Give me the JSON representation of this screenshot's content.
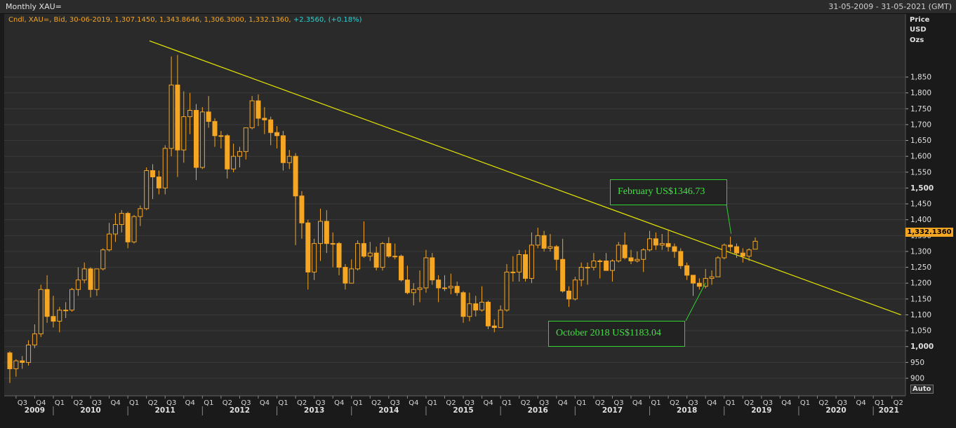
{
  "header": {
    "title": "Monthly XAU=",
    "date_range": "31-05-2009 - 31-05-2021 (GMT)"
  },
  "legend": {
    "text": "Cndl, XAU=, Bid, 30-06-2019, 1,307.1450, 1,343.8646, 1,306.3000, 1,332.1360,",
    "change": "+2.3560, (+0.18%)"
  },
  "y_axis_header": [
    "Price",
    "USD",
    "Ozs"
  ],
  "last_price_tag": "1,332.1360",
  "auto_button": "Auto",
  "annotations": {
    "feb": "February US$1346.73",
    "oct": "October 2018 US$1183.04"
  },
  "colors": {
    "up": "#f5a623",
    "trendline": "#e6e600",
    "annotation": "#2ed12e",
    "change_text": "#2bd4d4"
  },
  "chart_data": {
    "type": "candlestick",
    "title": "Monthly XAU=",
    "ylabel": "Price USD Ozs",
    "ylim": [
      880,
      1920
    ],
    "y_ticks": [
      900,
      950,
      1000,
      1050,
      1100,
      1150,
      1200,
      1250,
      1300,
      1350,
      1400,
      1450,
      1500,
      1550,
      1600,
      1650,
      1700,
      1750,
      1800,
      1850
    ],
    "y_tick_labels": [
      "900",
      "950",
      "1,000",
      "1,050",
      "1,100",
      "1,150",
      "1,200",
      "1,250",
      "1,300",
      "1,350",
      "1,400",
      "1,450",
      "1,500",
      "1,550",
      "1,600",
      "1,650",
      "1,700",
      "1,750",
      "1,800",
      "1,850"
    ],
    "x_range": [
      "2009-06",
      "2021-05"
    ],
    "quarter_labels": [
      "Q3",
      "Q4",
      "Q1",
      "Q2",
      "Q3",
      "Q4",
      "Q1",
      "Q2",
      "Q3",
      "Q4",
      "Q1",
      "Q2",
      "Q3",
      "Q4",
      "Q1",
      "Q2",
      "Q3",
      "Q4",
      "Q1",
      "Q2",
      "Q3",
      "Q4",
      "Q1",
      "Q2",
      "Q3",
      "Q4",
      "Q1",
      "Q2",
      "Q3",
      "Q4",
      "Q1",
      "Q2",
      "Q3",
      "Q4",
      "Q1",
      "Q2",
      "Q3",
      "Q4",
      "Q1",
      "Q2",
      "Q3",
      "Q4",
      "Q1",
      "Q2",
      "Q3",
      "Q4",
      "Q1",
      "Q2"
    ],
    "year_labels": [
      "2009",
      "2010",
      "2011",
      "2012",
      "2013",
      "2014",
      "2015",
      "2016",
      "2017",
      "2018",
      "2019",
      "2020",
      "2021"
    ],
    "trendline": {
      "start": [
        "2011-09",
        1920
      ],
      "end": [
        "2021-05",
        1100
      ]
    },
    "callouts": [
      {
        "label": "February US$1346.73",
        "date": "2019-02",
        "value": 1346.73
      },
      {
        "label": "October 2018 US$1183.04",
        "date": "2018-10",
        "value": 1183.04
      }
    ],
    "candles": [
      [
        "2009-06",
        980,
        985,
        885,
        930
      ],
      [
        "2009-07",
        930,
        960,
        905,
        955
      ],
      [
        "2009-08",
        955,
        970,
        930,
        950
      ],
      [
        "2009-09",
        950,
        1020,
        940,
        1005
      ],
      [
        "2009-10",
        1005,
        1070,
        995,
        1040
      ],
      [
        "2009-11",
        1040,
        1195,
        1030,
        1180
      ],
      [
        "2009-12",
        1180,
        1225,
        1075,
        1095
      ],
      [
        "2010-01",
        1095,
        1160,
        1060,
        1080
      ],
      [
        "2010-02",
        1080,
        1125,
        1045,
        1115
      ],
      [
        "2010-03",
        1115,
        1140,
        1090,
        1115
      ],
      [
        "2010-04",
        1115,
        1185,
        1110,
        1180
      ],
      [
        "2010-05",
        1180,
        1250,
        1160,
        1210
      ],
      [
        "2010-06",
        1210,
        1265,
        1200,
        1245
      ],
      [
        "2010-07",
        1245,
        1250,
        1155,
        1180
      ],
      [
        "2010-08",
        1180,
        1245,
        1160,
        1245
      ],
      [
        "2010-09",
        1245,
        1310,
        1240,
        1305
      ],
      [
        "2010-10",
        1305,
        1390,
        1300,
        1355
      ],
      [
        "2010-11",
        1355,
        1420,
        1330,
        1385
      ],
      [
        "2010-12",
        1385,
        1430,
        1360,
        1420
      ],
      [
        "2011-01",
        1420,
        1425,
        1310,
        1330
      ],
      [
        "2011-02",
        1330,
        1415,
        1325,
        1410
      ],
      [
        "2011-03",
        1410,
        1445,
        1380,
        1435
      ],
      [
        "2011-04",
        1435,
        1565,
        1430,
        1555
      ],
      [
        "2011-05",
        1555,
        1575,
        1465,
        1535
      ],
      [
        "2011-06",
        1535,
        1555,
        1480,
        1500
      ],
      [
        "2011-07",
        1500,
        1635,
        1480,
        1625
      ],
      [
        "2011-08",
        1625,
        1915,
        1600,
        1825
      ],
      [
        "2011-09",
        1825,
        1920,
        1535,
        1620
      ],
      [
        "2011-10",
        1620,
        1805,
        1580,
        1725
      ],
      [
        "2011-11",
        1725,
        1800,
        1670,
        1745
      ],
      [
        "2011-12",
        1745,
        1765,
        1525,
        1565
      ],
      [
        "2012-01",
        1565,
        1755,
        1560,
        1740
      ],
      [
        "2012-02",
        1740,
        1790,
        1690,
        1710
      ],
      [
        "2012-03",
        1710,
        1720,
        1630,
        1665
      ],
      [
        "2012-04",
        1665,
        1680,
        1625,
        1665
      ],
      [
        "2012-05",
        1665,
        1670,
        1530,
        1560
      ],
      [
        "2012-06",
        1560,
        1640,
        1550,
        1600
      ],
      [
        "2012-07",
        1600,
        1630,
        1565,
        1615
      ],
      [
        "2012-08",
        1615,
        1690,
        1590,
        1690
      ],
      [
        "2012-09",
        1690,
        1790,
        1685,
        1775
      ],
      [
        "2012-10",
        1775,
        1795,
        1695,
        1720
      ],
      [
        "2012-11",
        1720,
        1755,
        1670,
        1715
      ],
      [
        "2012-12",
        1715,
        1725,
        1635,
        1675
      ],
      [
        "2013-01",
        1675,
        1695,
        1625,
        1665
      ],
      [
        "2013-02",
        1665,
        1680,
        1555,
        1580
      ],
      [
        "2013-03",
        1580,
        1620,
        1560,
        1600
      ],
      [
        "2013-04",
        1600,
        1610,
        1320,
        1475
      ],
      [
        "2013-05",
        1475,
        1490,
        1340,
        1390
      ],
      [
        "2013-06",
        1390,
        1400,
        1180,
        1235
      ],
      [
        "2013-07",
        1235,
        1340,
        1210,
        1325
      ],
      [
        "2013-08",
        1325,
        1435,
        1270,
        1395
      ],
      [
        "2013-09",
        1395,
        1430,
        1295,
        1325
      ],
      [
        "2013-10",
        1325,
        1360,
        1250,
        1325
      ],
      [
        "2013-11",
        1325,
        1330,
        1225,
        1250
      ],
      [
        "2013-12",
        1250,
        1260,
        1180,
        1200
      ],
      [
        "2014-01",
        1200,
        1275,
        1200,
        1245
      ],
      [
        "2014-02",
        1245,
        1335,
        1240,
        1325
      ],
      [
        "2014-03",
        1325,
        1395,
        1280,
        1285
      ],
      [
        "2014-04",
        1285,
        1330,
        1270,
        1295
      ],
      [
        "2014-05",
        1295,
        1315,
        1240,
        1250
      ],
      [
        "2014-06",
        1250,
        1330,
        1240,
        1325
      ],
      [
        "2014-07",
        1325,
        1345,
        1280,
        1285
      ],
      [
        "2014-08",
        1285,
        1325,
        1275,
        1285
      ],
      [
        "2014-09",
        1285,
        1290,
        1205,
        1210
      ],
      [
        "2014-10",
        1210,
        1255,
        1165,
        1170
      ],
      [
        "2014-11",
        1170,
        1200,
        1130,
        1180
      ],
      [
        "2014-12",
        1180,
        1240,
        1140,
        1185
      ],
      [
        "2015-01",
        1185,
        1305,
        1170,
        1280
      ],
      [
        "2015-02",
        1280,
        1295,
        1195,
        1210
      ],
      [
        "2015-03",
        1210,
        1225,
        1140,
        1185
      ],
      [
        "2015-04",
        1185,
        1225,
        1175,
        1185
      ],
      [
        "2015-05",
        1185,
        1230,
        1165,
        1190
      ],
      [
        "2015-06",
        1190,
        1205,
        1160,
        1170
      ],
      [
        "2015-07",
        1170,
        1175,
        1075,
        1095
      ],
      [
        "2015-08",
        1095,
        1170,
        1080,
        1135
      ],
      [
        "2015-09",
        1135,
        1160,
        1095,
        1115
      ],
      [
        "2015-10",
        1115,
        1190,
        1110,
        1140
      ],
      [
        "2015-11",
        1140,
        1145,
        1055,
        1065
      ],
      [
        "2015-12",
        1065,
        1085,
        1045,
        1060
      ],
      [
        "2016-01",
        1060,
        1130,
        1060,
        1115
      ],
      [
        "2016-02",
        1115,
        1260,
        1110,
        1235
      ],
      [
        "2016-03",
        1235,
        1285,
        1205,
        1235
      ],
      [
        "2016-04",
        1235,
        1305,
        1205,
        1290
      ],
      [
        "2016-05",
        1290,
        1305,
        1205,
        1215
      ],
      [
        "2016-06",
        1215,
        1360,
        1200,
        1320
      ],
      [
        "2016-07",
        1320,
        1375,
        1310,
        1350
      ],
      [
        "2016-08",
        1350,
        1365,
        1300,
        1310
      ],
      [
        "2016-09",
        1310,
        1355,
        1300,
        1315
      ],
      [
        "2016-10",
        1315,
        1320,
        1240,
        1275
      ],
      [
        "2016-11",
        1275,
        1340,
        1170,
        1175
      ],
      [
        "2016-12",
        1175,
        1190,
        1125,
        1150
      ],
      [
        "2017-01",
        1150,
        1220,
        1145,
        1210
      ],
      [
        "2017-02",
        1210,
        1265,
        1190,
        1250
      ],
      [
        "2017-03",
        1250,
        1265,
        1195,
        1250
      ],
      [
        "2017-04",
        1250,
        1295,
        1240,
        1270
      ],
      [
        "2017-05",
        1270,
        1275,
        1215,
        1270
      ],
      [
        "2017-06",
        1270,
        1295,
        1240,
        1240
      ],
      [
        "2017-07",
        1240,
        1275,
        1205,
        1270
      ],
      [
        "2017-08",
        1270,
        1330,
        1265,
        1320
      ],
      [
        "2017-09",
        1320,
        1360,
        1275,
        1280
      ],
      [
        "2017-10",
        1280,
        1305,
        1260,
        1270
      ],
      [
        "2017-11",
        1270,
        1300,
        1265,
        1275
      ],
      [
        "2017-12",
        1275,
        1310,
        1235,
        1305
      ],
      [
        "2018-01",
        1305,
        1365,
        1300,
        1340
      ],
      [
        "2018-02",
        1340,
        1360,
        1305,
        1320
      ],
      [
        "2018-03",
        1320,
        1355,
        1305,
        1325
      ],
      [
        "2018-04",
        1325,
        1365,
        1300,
        1315
      ],
      [
        "2018-05",
        1315,
        1325,
        1280,
        1300
      ],
      [
        "2018-06",
        1300,
        1310,
        1245,
        1255
      ],
      [
        "2018-07",
        1255,
        1265,
        1210,
        1225
      ],
      [
        "2018-08",
        1225,
        1225,
        1160,
        1200
      ],
      [
        "2018-09",
        1200,
        1215,
        1180,
        1190
      ],
      [
        "2018-10",
        1190,
        1245,
        1183,
        1215
      ],
      [
        "2018-11",
        1215,
        1240,
        1195,
        1220
      ],
      [
        "2018-12",
        1220,
        1285,
        1220,
        1280
      ],
      [
        "2019-01",
        1280,
        1325,
        1275,
        1320
      ],
      [
        "2019-02",
        1320,
        1346.73,
        1300,
        1315
      ],
      [
        "2019-03",
        1315,
        1325,
        1280,
        1295
      ],
      [
        "2019-04",
        1295,
        1310,
        1265,
        1285
      ],
      [
        "2019-05",
        1285,
        1310,
        1270,
        1305
      ],
      [
        "2019-06",
        1307.145,
        1343.8646,
        1306.3,
        1332.136
      ]
    ]
  }
}
